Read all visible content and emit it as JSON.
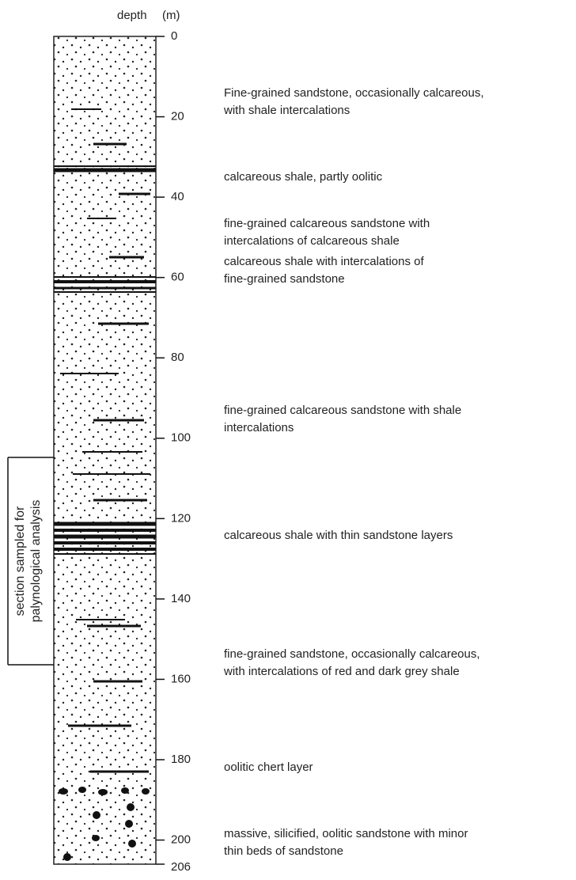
{
  "axis": {
    "label": "depth",
    "unit": "(m)",
    "ticks": [
      0,
      20,
      40,
      60,
      80,
      100,
      120,
      140,
      160,
      180,
      200,
      206
    ]
  },
  "descriptions": [
    {
      "lines": [
        "Fine-grained sandstone, occasionally calcareous,",
        "with shale intercalations"
      ]
    },
    {
      "lines": [
        "calcareous shale, partly oolitic"
      ]
    },
    {
      "lines": [
        "fine-grained calcareous sandstone with",
        "intercalations of calcareous shale"
      ]
    },
    {
      "lines": [
        "calcareous shale with intercalations of",
        "fine-grained sandstone"
      ]
    },
    {
      "lines": [
        "fine-grained calcareous sandstone with shale",
        "intercalations"
      ]
    },
    {
      "lines": [
        "calcareous shale with thin sandstone layers"
      ]
    },
    {
      "lines": [
        "fine-grained sandstone, occasionally calcareous,",
        "with  intercalations of red and dark grey shale"
      ]
    },
    {
      "lines": [
        "oolitic chert layer"
      ]
    },
    {
      "lines": [
        "massive, silicified, oolitic sandstone with minor",
        "thin beds of sandstone"
      ]
    }
  ],
  "sample_label": {
    "lines": [
      "section sampled for",
      "palynological analysis"
    ]
  }
}
